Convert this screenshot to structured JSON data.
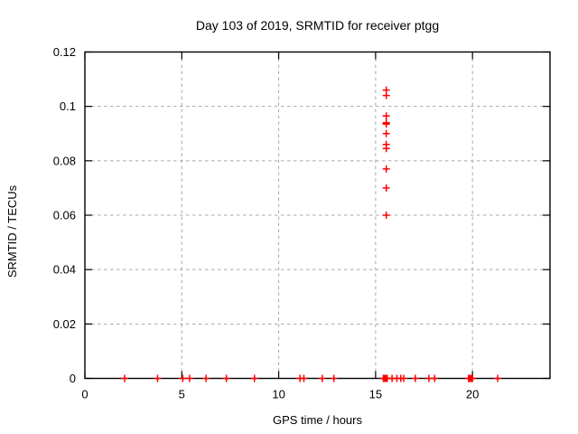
{
  "chart_data": {
    "type": "scatter",
    "title": "Day 103 of 2019, SRMTID for receiver ptgg",
    "xlabel": "GPS time / hours",
    "ylabel": "SRMTID / TECUs",
    "xlim": [
      0,
      24
    ],
    "ylim": [
      0,
      0.12
    ],
    "xticks": [
      0,
      5,
      10,
      15,
      20
    ],
    "xtick_labels": [
      "0",
      "5",
      "10",
      "15",
      "20"
    ],
    "yticks": [
      0,
      0.02,
      0.04,
      0.06,
      0.08,
      0.1,
      0.12
    ],
    "ytick_labels": [
      "0",
      "0.02",
      "0.04",
      "0.06",
      "0.08",
      "0.1",
      "0.12"
    ],
    "grid": true,
    "legend": false,
    "marker": "plus",
    "series": [
      {
        "name": "SRMTID",
        "color": "#ff0000",
        "points": [
          [
            15.55,
            0.106
          ],
          [
            15.55,
            0.104
          ],
          [
            15.55,
            0.0965
          ],
          [
            15.55,
            0.094
          ],
          [
            15.55,
            0.0935
          ],
          [
            15.55,
            0.09
          ],
          [
            15.55,
            0.086
          ],
          [
            15.55,
            0.0845
          ],
          [
            15.55,
            0.077
          ],
          [
            15.55,
            0.07
          ],
          [
            15.55,
            0.06
          ],
          [
            2.05,
            0
          ],
          [
            3.75,
            0
          ],
          [
            5.05,
            0
          ],
          [
            5.4,
            0
          ],
          [
            6.25,
            0
          ],
          [
            7.3,
            0
          ],
          [
            8.75,
            0
          ],
          [
            11.1,
            0
          ],
          [
            11.3,
            0
          ],
          [
            12.25,
            0
          ],
          [
            12.85,
            0
          ],
          [
            15.4,
            0
          ],
          [
            15.45,
            0
          ],
          [
            15.5,
            0
          ],
          [
            15.55,
            0
          ],
          [
            15.6,
            0
          ],
          [
            15.85,
            0
          ],
          [
            16.1,
            0
          ],
          [
            16.3,
            0
          ],
          [
            16.45,
            0
          ],
          [
            17.05,
            0
          ],
          [
            17.75,
            0
          ],
          [
            18.05,
            0
          ],
          [
            19.8,
            0
          ],
          [
            19.85,
            0
          ],
          [
            19.9,
            0
          ],
          [
            19.95,
            0
          ],
          [
            20.0,
            0
          ],
          [
            21.3,
            0
          ]
        ]
      }
    ]
  },
  "colors": {
    "marker": "#ff0000",
    "grid": "#a8a8a8",
    "frame": "#000000",
    "text": "#000000",
    "background": "#ffffff"
  }
}
